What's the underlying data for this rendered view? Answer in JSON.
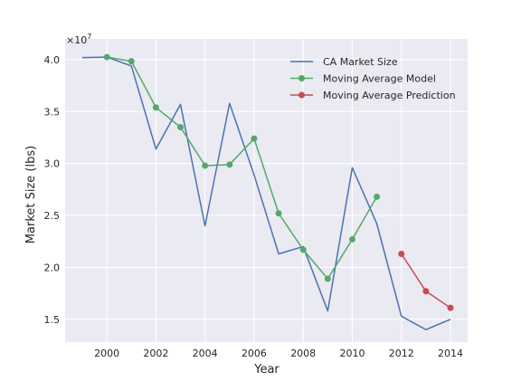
{
  "chart_data": {
    "type": "line",
    "title": "",
    "xlabel": "Year",
    "ylabel": "Market Size (lbs)",
    "y_offset_label": "×10",
    "y_offset_exponent": "7",
    "xlim": [
      1998.3,
      2014.7
    ],
    "ylim": [
      12800000,
      42000000
    ],
    "x_ticks": [
      2000,
      2002,
      2004,
      2006,
      2008,
      2010,
      2012,
      2014
    ],
    "x_tick_labels": [
      "2000",
      "2002",
      "2004",
      "2006",
      "2008",
      "2010",
      "2012",
      "2014"
    ],
    "y_ticks": [
      15000000,
      20000000,
      25000000,
      30000000,
      35000000,
      40000000
    ],
    "y_tick_labels": [
      "1.5",
      "2.0",
      "2.5",
      "3.0",
      "3.5",
      "4.0"
    ],
    "grid": true,
    "legend_position": "upper right",
    "series": [
      {
        "name": "CA Market Size",
        "color": "#4c72b0",
        "marker": false,
        "x": [
          1999,
          2000,
          2001,
          2002,
          2003,
          2004,
          2005,
          2006,
          2007,
          2008,
          2009,
          2010,
          2011,
          2012,
          2013,
          2014
        ],
        "y": [
          40200000,
          40250000,
          39400000,
          31400000,
          35700000,
          24000000,
          35800000,
          28900000,
          21300000,
          22000000,
          15800000,
          29600000,
          24200000,
          15300000,
          14000000,
          15000000
        ]
      },
      {
        "name": "Moving Average Model",
        "color": "#55a868",
        "marker": true,
        "x": [
          2000,
          2001,
          2002,
          2003,
          2004,
          2005,
          2006,
          2007,
          2008,
          2009,
          2010,
          2011
        ],
        "y": [
          40250000,
          39850000,
          35400000,
          33500000,
          29800000,
          29900000,
          32400000,
          25200000,
          21700000,
          18900000,
          22700000,
          26800000
        ]
      },
      {
        "name": "Moving Average Prediction",
        "color": "#c44e52",
        "marker": true,
        "x": [
          2012,
          2013,
          2014
        ],
        "y": [
          21300000,
          17700000,
          16100000
        ]
      }
    ]
  }
}
